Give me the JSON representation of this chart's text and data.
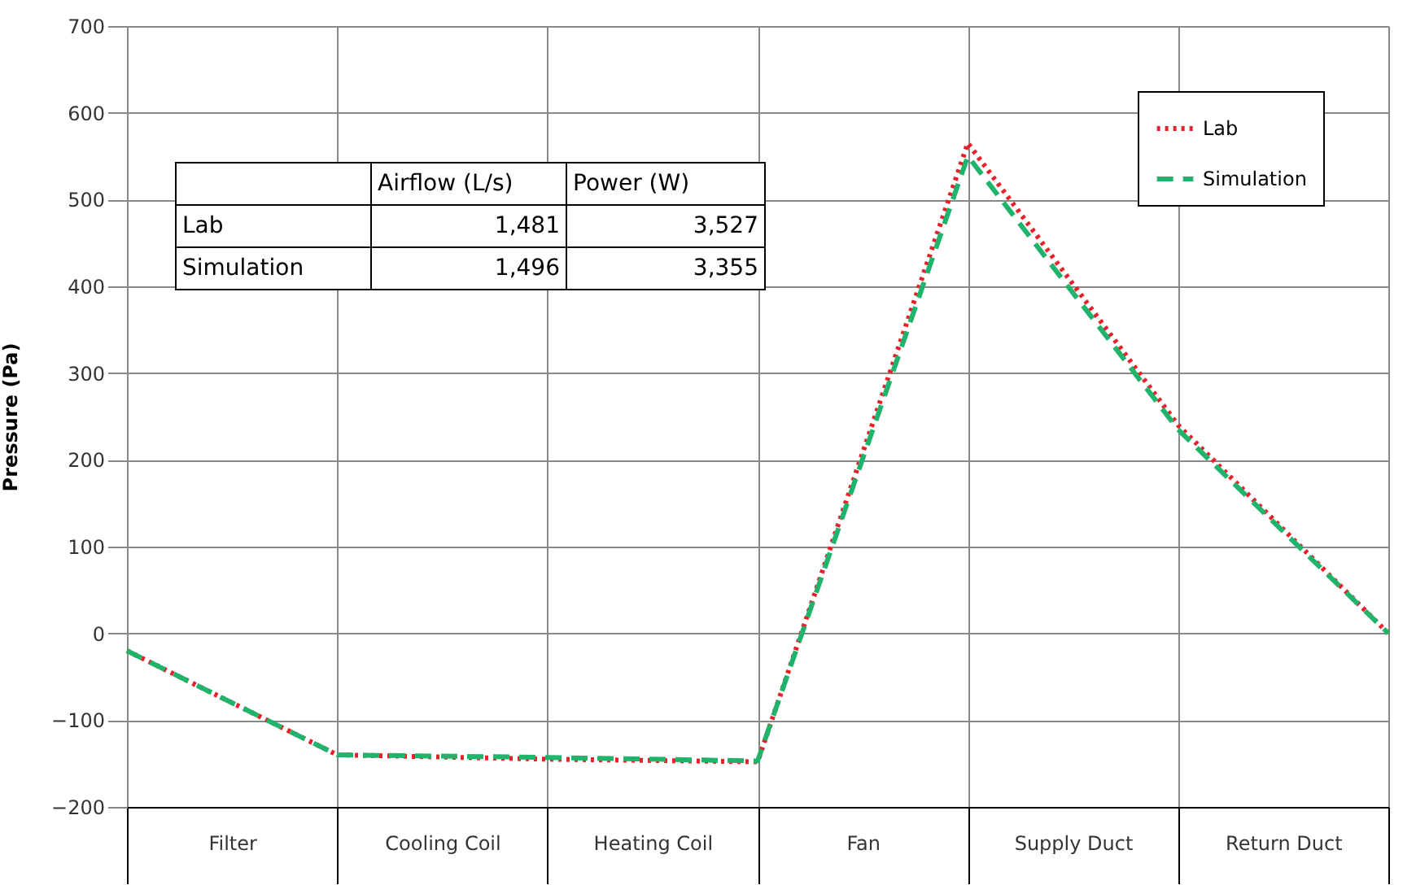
{
  "chart_data": {
    "type": "line",
    "ylabel": "Pressure (Pa)",
    "categories": [
      null,
      "Filter",
      null,
      "Cooling Coil",
      null,
      "Heating Coil",
      null,
      "Fan",
      null,
      "Supply Duct",
      null,
      "Return Duct",
      null
    ],
    "ylim": [
      -200,
      700
    ],
    "yticks": [
      -200,
      -100,
      0,
      100,
      200,
      300,
      400,
      500,
      600,
      700
    ],
    "series": [
      {
        "name": "Lab",
        "color": "#e8202a",
        "line_style": "dotted",
        "values": [
          -20,
          null,
          -140,
          null,
          -145,
          null,
          -148,
          null,
          565,
          null,
          240,
          null,
          0
        ]
      },
      {
        "name": "Simulation",
        "color": "#1fb36b",
        "line_style": "dashed",
        "values": [
          -20,
          null,
          -140,
          null,
          -143,
          null,
          -147,
          null,
          550,
          null,
          235,
          null,
          0
        ]
      }
    ],
    "grid": true,
    "legend": "top right",
    "marker": "none",
    "annotations": [
      "Airflow (L/s)",
      "Power (W)",
      "Lab",
      "1,481",
      "3,527",
      "Simulation",
      "1,496",
      "3,355"
    ]
  }
}
